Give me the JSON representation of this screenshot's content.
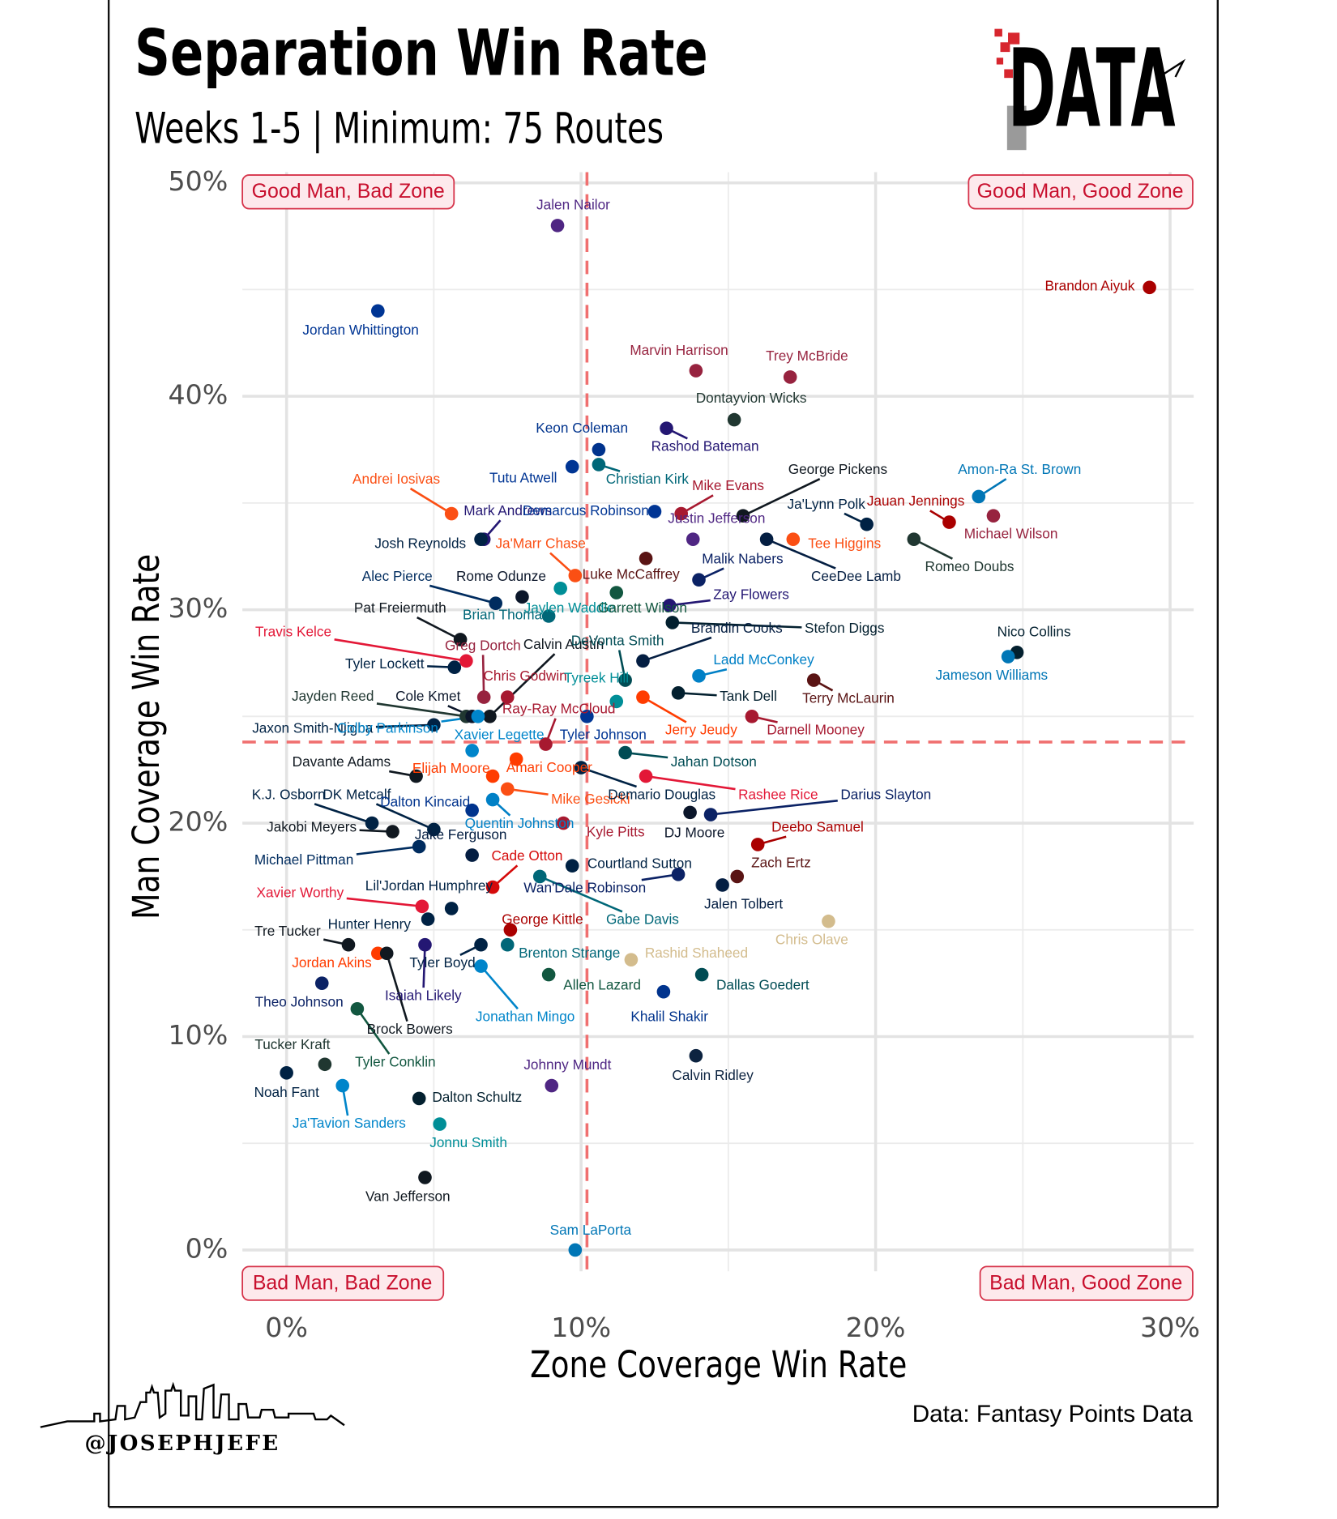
{
  "chart_data": {
    "type": "scatter",
    "title": "Separation Win Rate",
    "subtitle": "Weeks 1-5 | Minimum: 75 Routes",
    "x_label": "Zone Coverage Win Rate",
    "y_label": "Man Coverage Win Rate",
    "source": "Data: Fantasy Points Data",
    "logo": "DATA",
    "watermark": "@JOSEPHJEFE",
    "quadrant_labels": {
      "top_left": "Good Man, Bad Zone",
      "top_right": "Good Man, Good Zone",
      "bottom_left": "Bad Man, Bad Zone",
      "bottom_right": "Bad Man, Good Zone"
    },
    "xlim": [
      -1.5,
      30.8
    ],
    "ylim": [
      -1,
      50.5
    ],
    "xticks": [
      {
        "value": 0,
        "label": "0%"
      },
      {
        "value": 10,
        "label": "10%"
      },
      {
        "value": 20,
        "label": "20%"
      },
      {
        "value": 30,
        "label": "30%"
      }
    ],
    "yticks": [
      {
        "value": 0,
        "label": "0%"
      },
      {
        "value": 10,
        "label": "10%"
      },
      {
        "value": 20,
        "label": "20%"
      },
      {
        "value": 30,
        "label": "30%"
      },
      {
        "value": 40,
        "label": "40%"
      },
      {
        "value": 50,
        "label": "50%"
      }
    ],
    "xminor": [
      5,
      15,
      25
    ],
    "yminor": [
      5,
      15,
      25,
      35,
      45
    ],
    "grid": true,
    "x_reference": 10.2,
    "y_reference": 23.8,
    "reference_color": "#f07070",
    "labels": [
      "Jalen Nailor",
      "Jordan Whittington",
      "Brandon Aiyuk",
      "Marvin Harrison",
      "Trey McBride",
      "Dontayvion Wicks",
      "Keon Coleman",
      "Rashod Bateman",
      "Tutu Atwell",
      "Christian Kirk",
      "Mike Evans",
      "George Pickens",
      "Amon-Ra St. Brown",
      "Ja'Lynn Polk",
      "Jauan Jennings",
      "Michael Wilson",
      "Andrei Iosivas",
      "Mark Andrews",
      "Demarcus Robinson",
      "Justin Jefferson",
      "Josh Reynolds",
      "Ja'Marr Chase",
      "CeeDee Lamb",
      "Tee Higgins",
      "Malik Nabers",
      "Zay Flowers",
      "Luke McCaffrey",
      "Romeo Doubs",
      "Alec Pierce",
      "Rome Odunze",
      "Jaylen Waddle",
      "Garrett Wilson",
      "Brian Thomas",
      "Pat Freiermuth",
      "Travis Kelce",
      "Stefon Diggs",
      "Brandin Cooks",
      "Nico Collins",
      "Jameson Williams",
      "Ladd McConkey",
      "Greg Dortch",
      "Calvin Austin",
      "Tyler Lockett",
      "Chris Godwin",
      "DeVonta Smith",
      "Tyreek Hill",
      "Tank Dell",
      "Terry McLaurin",
      "Darnell Mooney",
      "Jerry Jeudy",
      "Jayden Reed",
      "Cole Kmet",
      "Ray-Ray McCloud",
      "Jaxon Smith-Njigba",
      "Colby Parkinson",
      "Xavier Legette",
      "Tyler Johnson",
      "Jahan Dotson",
      "Davante Adams",
      "Elijah Moore",
      "Amari Cooper",
      "Mike Gesicki",
      "Demario Douglas",
      "Rashee Rice",
      "Darius Slayton",
      "K.J. Osborn",
      "DK Metcalf",
      "Dalton Kincaid",
      "Jakobi Meyers",
      "Quentin Johnston",
      "Jake Ferguson",
      "Michael Pittman",
      "Kyle Pitts",
      "DJ Moore",
      "Deebo Samuel",
      "Cade Otton",
      "Courtland Sutton",
      "Zach Ertz",
      "Jalen Tolbert",
      "Wan'Dale Robinson",
      "Gabe Davis",
      "Xavier Worthy",
      "Lil'Jordan Humphrey",
      "Chris Olave",
      "Rashid Shaheed",
      "George Kittle",
      "Tre Tucker",
      "Hunter Henry",
      "Jordan Akins",
      "Brock Bowers",
      "Tyler Boyd",
      "Isaiah Likely",
      "Brenton Strange",
      "Jonathan Mingo",
      "Allen Lazard",
      "Dallas Goedert",
      "Khalil Shakir",
      "Theo Johnson",
      "Tyler Conklin",
      "Calvin Ridley",
      "Johnny Mundt",
      "Tucker Kraft",
      "Noah Fant",
      "Ja'Tavion Sanders",
      "Dalton Schultz",
      "Jonnu Smith",
      "Van Jefferson",
      "Sam LaPorta"
    ],
    "x": [
      9.2,
      3.1,
      29.3,
      13.9,
      17.1,
      15.2,
      10.6,
      12.9,
      9.7,
      10.6,
      13.4,
      15.5,
      23.5,
      19.7,
      22.5,
      24.0,
      5.6,
      6.7,
      12.5,
      13.8,
      6.6,
      9.8,
      16.3,
      17.2,
      14.0,
      13.0,
      12.2,
      21.3,
      7.1,
      8.0,
      9.3,
      11.2,
      8.9,
      5.9,
      6.1,
      13.1,
      12.1,
      24.8,
      24.5,
      14.0,
      6.7,
      6.9,
      5.7,
      7.5,
      11.5,
      11.2,
      13.3,
      17.9,
      15.8,
      12.1,
      6.1,
      6.3,
      8.8,
      5.0,
      6.5,
      6.3,
      10.2,
      11.5,
      4.4,
      7.0,
      7.8,
      7.5,
      10.0,
      12.2,
      14.4,
      2.9,
      5.0,
      6.3,
      3.6,
      7.0,
      6.3,
      4.5,
      9.4,
      13.7,
      16.0,
      7.0,
      9.7,
      15.3,
      14.8,
      13.3,
      8.6,
      4.6,
      5.6,
      18.4,
      11.7,
      7.6,
      2.1,
      4.8,
      3.1,
      3.4,
      6.6,
      4.7,
      7.5,
      6.6,
      8.9,
      14.1,
      12.8,
      1.2,
      2.4,
      13.9,
      9.0,
      1.3,
      0.0,
      1.9,
      4.5,
      5.2,
      4.7,
      9.8
    ],
    "values": [
      48.0,
      44.0,
      45.1,
      41.2,
      40.9,
      38.9,
      37.5,
      38.5,
      36.7,
      36.8,
      34.5,
      34.4,
      35.3,
      34.0,
      34.1,
      34.4,
      34.5,
      33.3,
      34.6,
      33.3,
      33.3,
      31.6,
      33.3,
      33.3,
      31.4,
      30.2,
      32.4,
      33.3,
      30.3,
      30.6,
      31.0,
      30.8,
      29.7,
      28.6,
      27.6,
      29.4,
      27.6,
      28.0,
      27.8,
      26.9,
      25.9,
      25.0,
      27.3,
      25.9,
      26.7,
      25.7,
      26.1,
      26.7,
      25.0,
      25.9,
      25.0,
      25.0,
      23.7,
      24.6,
      25.0,
      23.4,
      25.0,
      23.3,
      22.2,
      22.2,
      23.0,
      21.6,
      22.6,
      22.2,
      20.4,
      20.0,
      19.7,
      20.6,
      19.6,
      21.1,
      18.5,
      18.9,
      20.0,
      20.5,
      19.0,
      17.0,
      18.0,
      17.5,
      17.1,
      17.6,
      17.5,
      16.1,
      16.0,
      15.4,
      13.6,
      15.0,
      14.3,
      15.5,
      13.9,
      13.9,
      14.3,
      14.3,
      14.3,
      13.3,
      12.9,
      12.9,
      12.1,
      12.5,
      11.3,
      9.1,
      7.7,
      8.7,
      8.3,
      7.7,
      7.1,
      5.9,
      3.4,
      0.0
    ],
    "colors": [
      "#4f2683",
      "#003594",
      "#aa0000",
      "#97233f",
      "#97233f",
      "#203731",
      "#00338d",
      "#241773",
      "#003594",
      "#006778",
      "#a71930",
      "#101820",
      "#0076b6",
      "#002244",
      "#aa0000",
      "#97233f",
      "#fb4f14",
      "#241773",
      "#003594",
      "#4f2683",
      "#002244",
      "#fb4f14",
      "#041e42",
      "#fb4f14",
      "#0b2265",
      "#241773",
      "#5a1414",
      "#203731",
      "#002c5f",
      "#0b162a",
      "#008e97",
      "#125740",
      "#006778",
      "#101820",
      "#e31837",
      "#03202f",
      "#041e42",
      "#03202f",
      "#0076b6",
      "#0080c6",
      "#97233f",
      "#101820",
      "#002244",
      "#a71930",
      "#004c54",
      "#008e97",
      "#03202f",
      "#5a1414",
      "#a71930",
      "#ff3c00",
      "#203731",
      "#0b162a",
      "#a71930",
      "#002244",
      "#0085ca",
      "#0085ca",
      "#003594",
      "#004c54",
      "#101820",
      "#ff3c00",
      "#ff3c00",
      "#fb4f14",
      "#002244",
      "#e31837",
      "#0b2265",
      "#002244",
      "#002244",
      "#00338d",
      "#101820",
      "#0080c6",
      "#041e42",
      "#002c5f",
      "#a71930",
      "#0b162a",
      "#aa0000",
      "#d50a0a",
      "#002244",
      "#5a1414",
      "#041e42",
      "#0b2265",
      "#006778",
      "#e31837",
      "#002244",
      "#d3bc8d",
      "#d3bc8d",
      "#aa0000",
      "#101820",
      "#002244",
      "#ff3c00",
      "#101820",
      "#002244",
      "#241773",
      "#006778",
      "#0085ca",
      "#125740",
      "#004c54",
      "#00338d",
      "#0b2265",
      "#125740",
      "#0c2340",
      "#4f2683",
      "#203731",
      "#002244",
      "#0085ca",
      "#03202f",
      "#008e97",
      "#101820",
      "#0076b6"
    ]
  }
}
